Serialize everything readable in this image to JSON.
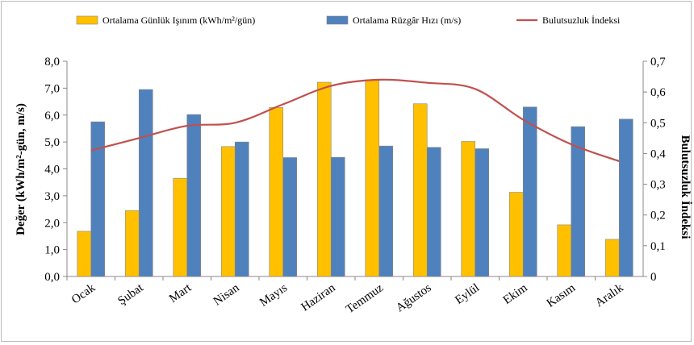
{
  "chart_data": {
    "type": "bar-line",
    "categories": [
      "Ocak",
      "Şubat",
      "Mart",
      "Nisan",
      "Mayıs",
      "Haziran",
      "Temmuz",
      "Ağustos",
      "Eylül",
      "Ekim",
      "Kasım",
      "Aralık"
    ],
    "series": [
      {
        "name": "Ortalama Günlük Işınım  (kWh/m²/gün)",
        "color": "#ffc000",
        "type": "bar",
        "values": [
          1.68,
          2.45,
          3.65,
          4.83,
          6.28,
          7.22,
          7.3,
          6.42,
          5.02,
          3.13,
          1.92,
          1.38
        ]
      },
      {
        "name": "Ortalama Rüzgâr Hızı (m/s)",
        "color": "#4f81bd",
        "type": "bar",
        "values": [
          5.75,
          6.95,
          6.02,
          5.0,
          4.42,
          4.43,
          4.85,
          4.8,
          4.75,
          6.3,
          5.57,
          5.85
        ]
      },
      {
        "name": "Bulutsuzluk İndeksi",
        "color": "#c0504d",
        "type": "line",
        "axis": "y2",
        "values": [
          0.41,
          0.45,
          0.49,
          0.5,
          0.56,
          0.62,
          0.64,
          0.63,
          0.61,
          0.51,
          0.43,
          0.375
        ]
      }
    ],
    "ylabel": "Değer (kWh/m²-gün, m/s)",
    "y2label": "Bulutsuzluk İndeksi",
    "ylim": [
      0,
      8
    ],
    "yticks": [
      {
        "value": 0,
        "label": "0,0"
      },
      {
        "value": 1,
        "label": "1,0"
      },
      {
        "value": 2,
        "label": "2,0"
      },
      {
        "value": 3,
        "label": "3,0"
      },
      {
        "value": 4,
        "label": "4,0"
      },
      {
        "value": 5,
        "label": "5,0"
      },
      {
        "value": 6,
        "label": "6,0"
      },
      {
        "value": 7,
        "label": "7,0"
      },
      {
        "value": 8,
        "label": "8,0"
      }
    ],
    "y2lim": [
      0,
      0.7
    ],
    "y2ticks": [
      0,
      {
        "value": 0.1,
        "label": "0,1"
      },
      {
        "value": 0.2,
        "label": "0,2"
      },
      {
        "value": 0.3,
        "label": "0,3"
      },
      {
        "value": 0.4,
        "label": "0,4"
      },
      {
        "value": 0.5,
        "label": "0,5"
      },
      {
        "value": 0.6,
        "label": "0,6"
      },
      {
        "value": 0.7,
        "label": "0,7"
      }
    ],
    "legend": "top"
  }
}
